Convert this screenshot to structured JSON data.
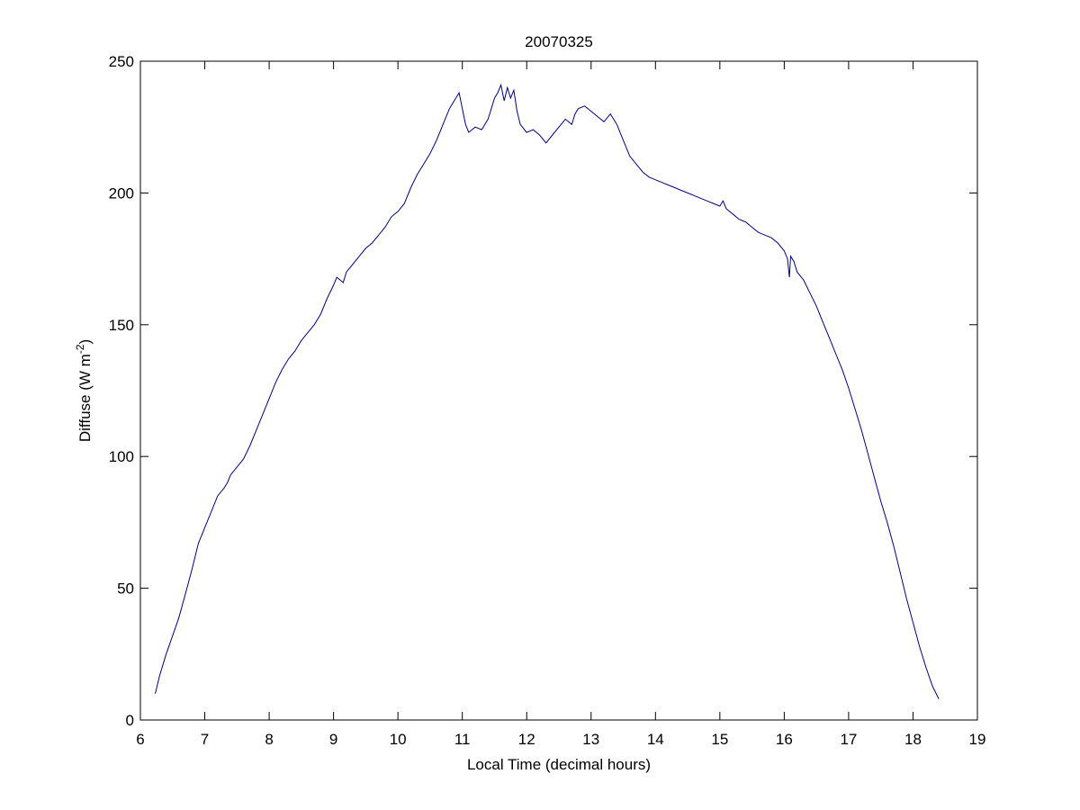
{
  "chart_data": {
    "type": "line",
    "title": "20070325",
    "xlabel": "Local Time (decimal hours)",
    "ylabel_main": "Diffuse (W m",
    "ylabel_sup": "-2",
    "ylabel_close": ")",
    "xlim": [
      6,
      19
    ],
    "ylim": [
      0,
      250
    ],
    "xticks": [
      6,
      7,
      8,
      9,
      10,
      11,
      12,
      13,
      14,
      15,
      16,
      17,
      18,
      19
    ],
    "yticks": [
      0,
      50,
      100,
      150,
      200,
      250
    ],
    "grid": false,
    "line_color": "#000080",
    "series": [
      {
        "x": [
          6.23,
          6.3,
          6.4,
          6.5,
          6.6,
          6.7,
          6.8,
          6.9,
          7.0,
          7.1,
          7.2,
          7.3,
          7.35,
          7.4,
          7.5,
          7.6,
          7.7,
          7.8,
          7.9,
          8.0,
          8.1,
          8.2,
          8.3,
          8.4,
          8.5,
          8.6,
          8.7,
          8.8,
          8.9,
          9.0,
          9.05,
          9.1,
          9.15,
          9.2,
          9.3,
          9.4,
          9.5,
          9.6,
          9.7,
          9.8,
          9.9,
          10.0,
          10.1,
          10.2,
          10.3,
          10.4,
          10.5,
          10.6,
          10.7,
          10.8,
          10.9,
          10.95,
          11.0,
          11.05,
          11.1,
          11.2,
          11.3,
          11.4,
          11.5,
          11.55,
          11.6,
          11.65,
          11.7,
          11.75,
          11.8,
          11.85,
          11.9,
          12.0,
          12.1,
          12.2,
          12.3,
          12.4,
          12.5,
          12.6,
          12.7,
          12.75,
          12.8,
          12.9,
          13.0,
          13.1,
          13.2,
          13.3,
          13.4,
          13.5,
          13.6,
          13.7,
          13.8,
          13.9,
          14.0,
          14.1,
          14.2,
          14.3,
          14.4,
          14.5,
          14.6,
          14.7,
          14.8,
          14.9,
          15.0,
          15.05,
          15.1,
          15.2,
          15.3,
          15.4,
          15.5,
          15.6,
          15.7,
          15.8,
          15.9,
          16.0,
          16.05,
          16.08,
          16.1,
          16.15,
          16.2,
          16.3,
          16.4,
          16.5,
          16.6,
          16.7,
          16.8,
          16.9,
          17.0,
          17.1,
          17.2,
          17.3,
          17.4,
          17.5,
          17.6,
          17.7,
          17.8,
          17.9,
          18.0,
          18.1,
          18.2,
          18.3,
          18.4
        ],
        "y": [
          10,
          17,
          25,
          32,
          39,
          48,
          57,
          67,
          73,
          79,
          85,
          88,
          90,
          93,
          96,
          99,
          104,
          110,
          116,
          122,
          128,
          133,
          137,
          140,
          144,
          147,
          150,
          154,
          160,
          165,
          168,
          167,
          166,
          170,
          173,
          176,
          179,
          181,
          184,
          187,
          191,
          193,
          196,
          202,
          207,
          211,
          215,
          220,
          226,
          232,
          236,
          238,
          232,
          226,
          223,
          225,
          224,
          228,
          236,
          238,
          241,
          235,
          240,
          236,
          239,
          231,
          226,
          223,
          224,
          222,
          219,
          222,
          225,
          228,
          226,
          230,
          232,
          233,
          231,
          229,
          227,
          230,
          226,
          220,
          214,
          211,
          208,
          206,
          205,
          204,
          203,
          202,
          201,
          200,
          199,
          198,
          197,
          196,
          195,
          197,
          194,
          192,
          190,
          189,
          187,
          185,
          184,
          183,
          181,
          178,
          175,
          168,
          176,
          174,
          170,
          167,
          162,
          157,
          151,
          145,
          139,
          133,
          126,
          118,
          110,
          101,
          92,
          83,
          75,
          66,
          56,
          46,
          37,
          28,
          20,
          13,
          8
        ]
      }
    ]
  }
}
